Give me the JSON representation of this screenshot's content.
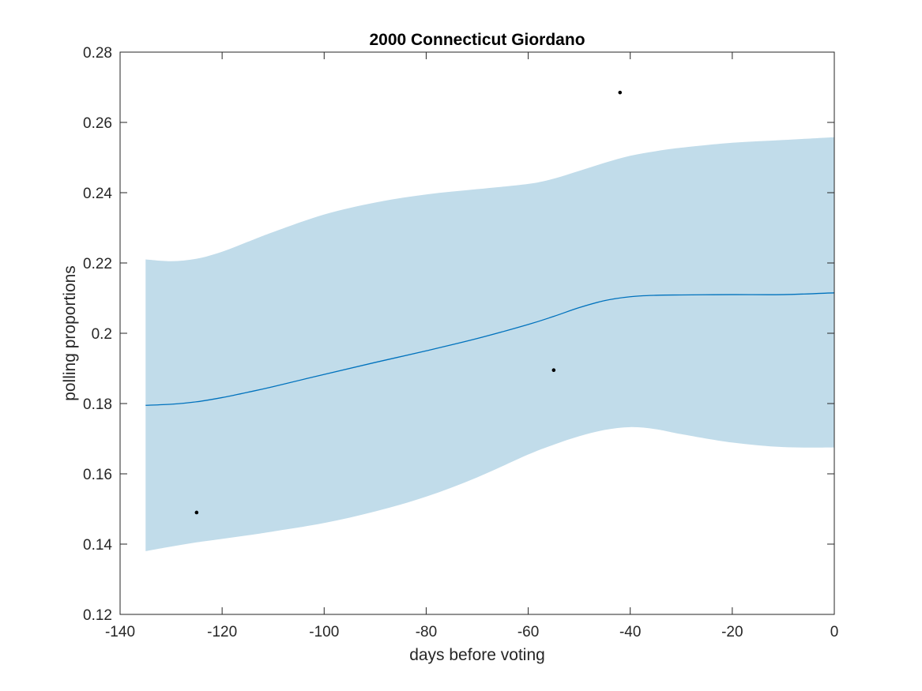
{
  "chart_data": {
    "type": "line",
    "title": "2000 Connecticut Giordano",
    "xlabel": "days before voting",
    "ylabel": "polling proportions",
    "xlim": [
      -140,
      0
    ],
    "ylim": [
      0.12,
      0.28
    ],
    "xticks": [
      -140,
      -120,
      -100,
      -80,
      -60,
      -40,
      -20,
      0
    ],
    "xtick_labels": [
      "-140",
      "-120",
      "-100",
      "-80",
      "-60",
      "-40",
      "-20",
      "0"
    ],
    "yticks": [
      0.12,
      0.14,
      0.16,
      0.18,
      0.2,
      0.22,
      0.24,
      0.26,
      0.28
    ],
    "ytick_labels": [
      "0.12",
      "0.14",
      "0.16",
      "0.18",
      "0.2",
      "0.22",
      "0.24",
      "0.26",
      "0.28"
    ],
    "grid": false,
    "colors": {
      "band": "#c1dcea",
      "line": "#0072bd",
      "points": "#000000",
      "axes": "#262626"
    },
    "band": {
      "x": [
        -135,
        -130,
        -125,
        -120,
        -115,
        -110,
        -100,
        -90,
        -80,
        -70,
        -60,
        -55,
        -50,
        -45,
        -40,
        -35,
        -30,
        -20,
        -10,
        0
      ],
      "upper": [
        0.221,
        0.2205,
        0.2212,
        0.2232,
        0.226,
        0.2288,
        0.2338,
        0.2372,
        0.2395,
        0.241,
        0.2425,
        0.244,
        0.2462,
        0.2485,
        0.2505,
        0.2518,
        0.2528,
        0.2542,
        0.255,
        0.2558
      ],
      "lower": [
        0.138,
        0.1393,
        0.1405,
        0.1415,
        0.1425,
        0.1436,
        0.146,
        0.1493,
        0.1535,
        0.159,
        0.1655,
        0.1683,
        0.1707,
        0.1725,
        0.1733,
        0.1727,
        0.1713,
        0.1689,
        0.1676,
        0.1675
      ]
    },
    "series": [
      {
        "x": [
          -135,
          -130,
          -125,
          -120,
          -115,
          -110,
          -100,
          -90,
          -80,
          -70,
          -60,
          -55,
          -50,
          -45,
          -40,
          -35,
          -30,
          -20,
          -10,
          0
        ],
        "values": [
          0.1795,
          0.1798,
          0.1805,
          0.1817,
          0.1832,
          0.1848,
          0.1883,
          0.1917,
          0.195,
          0.1985,
          0.2025,
          0.2048,
          0.2073,
          0.2093,
          0.2104,
          0.2108,
          0.2109,
          0.211,
          0.211,
          0.2115
        ]
      }
    ],
    "points": [
      {
        "x": -125,
        "y": 0.149
      },
      {
        "x": -55,
        "y": 0.1895
      },
      {
        "x": -42,
        "y": 0.2685
      }
    ]
  }
}
